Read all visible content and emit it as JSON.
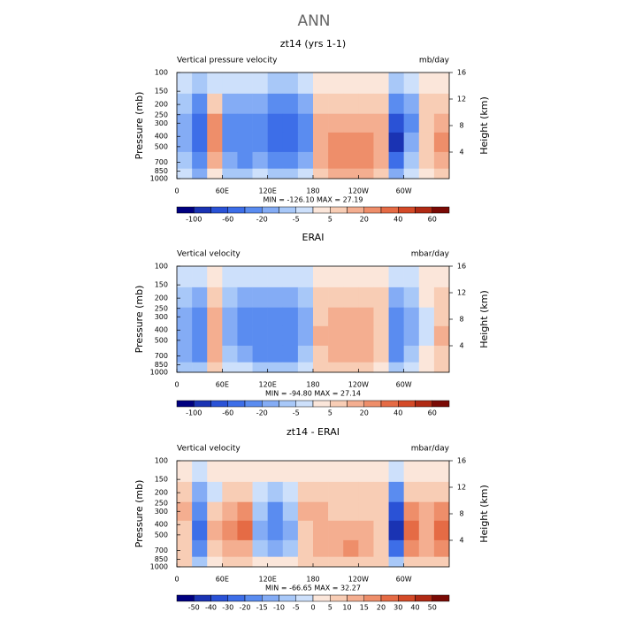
{
  "page_title": "ANN",
  "chart_data": [
    {
      "type": "contour",
      "title": "zt14 (yrs 1-1)",
      "left_label": "Vertical pressure velocity",
      "right_label": "mb/day",
      "ylabel": "Pressure (mb)",
      "y2label": "Height (km)",
      "stats": "MIN = -126.10   MAX =  27.19",
      "xlim": [
        0,
        360
      ],
      "xticks": [
        0,
        {
          "value": 60,
          "label": "60E"
        },
        {
          "value": 120,
          "label": "120E"
        },
        180,
        {
          "value": 240,
          "label": "120W"
        },
        {
          "value": 300,
          "label": "60W"
        }
      ],
      "ylim": [
        100,
        1000
      ],
      "ylog": true,
      "yreverse": true,
      "yticks": [
        100,
        150,
        200,
        250,
        300,
        400,
        500,
        700,
        850,
        1000
      ],
      "y2lim": [
        0,
        16
      ],
      "y2ticks": [
        4,
        8,
        12,
        16
      ],
      "x": [
        10,
        30,
        50,
        70,
        90,
        110,
        130,
        150,
        170,
        190,
        210,
        230,
        250,
        270,
        290,
        310,
        330,
        350
      ],
      "y": [
        125,
        200,
        300,
        450,
        700,
        925
      ],
      "z": [
        [
          -5,
          -10,
          -5,
          -5,
          -5,
          -5,
          -10,
          -10,
          -5,
          0,
          0,
          0,
          0,
          0,
          -10,
          -5,
          0,
          0
        ],
        [
          -10,
          -30,
          5,
          -20,
          -20,
          -20,
          -40,
          -40,
          -20,
          5,
          5,
          5,
          5,
          5,
          -40,
          -20,
          5,
          5
        ],
        [
          -20,
          -50,
          20,
          -30,
          -40,
          -30,
          -50,
          -60,
          -30,
          10,
          10,
          10,
          10,
          10,
          -80,
          -30,
          5,
          10
        ],
        [
          -20,
          -60,
          20,
          -30,
          -40,
          -30,
          -50,
          -60,
          -30,
          10,
          20,
          20,
          20,
          10,
          -100,
          -20,
          5,
          20
        ],
        [
          -10,
          -40,
          10,
          -20,
          -30,
          -20,
          -40,
          -40,
          -20,
          10,
          20,
          20,
          20,
          10,
          -60,
          -10,
          5,
          10
        ],
        [
          -5,
          -20,
          0,
          -10,
          -10,
          -5,
          -10,
          -10,
          -5,
          5,
          10,
          10,
          10,
          5,
          -20,
          -5,
          0,
          5
        ]
      ],
      "colorbar": {
        "levels": [
          -100,
          -80,
          -60,
          -40,
          -20,
          -10,
          -5,
          0,
          5,
          10,
          20,
          30,
          40,
          50,
          60
        ],
        "label_every": 2,
        "colors": [
          "#000080",
          "#1a33b3",
          "#2a52d6",
          "#3d6ee8",
          "#5a8cf0",
          "#84acf5",
          "#a8c8f8",
          "#cde0fb",
          "#fbe6da",
          "#f8cdb5",
          "#f4ae90",
          "#ee8e6a",
          "#e56b45",
          "#d44a28",
          "#b02a14",
          "#7a0a05"
        ]
      }
    },
    {
      "type": "contour",
      "title": "ERAI",
      "left_label": "Vertical velocity",
      "right_label": "mbar/day",
      "ylabel": "Pressure (mb)",
      "y2label": "Height (km)",
      "stats": "MIN = -94.80   MAX =  27.14",
      "xlim": [
        0,
        360
      ],
      "xticks": [
        0,
        {
          "value": 60,
          "label": "60E"
        },
        {
          "value": 120,
          "label": "120E"
        },
        180,
        {
          "value": 240,
          "label": "120W"
        },
        {
          "value": 300,
          "label": "60W"
        }
      ],
      "ylim": [
        100,
        1000
      ],
      "ylog": true,
      "yreverse": true,
      "yticks": [
        100,
        150,
        200,
        250,
        300,
        400,
        500,
        700,
        850,
        1000
      ],
      "y2lim": [
        0,
        16
      ],
      "y2ticks": [
        4,
        8,
        12,
        16
      ],
      "x": [
        10,
        30,
        50,
        70,
        90,
        110,
        130,
        150,
        170,
        190,
        210,
        230,
        250,
        270,
        290,
        310,
        330,
        350
      ],
      "y": [
        125,
        200,
        300,
        450,
        700,
        925
      ],
      "z": [
        [
          -5,
          -5,
          0,
          -5,
          -5,
          -5,
          -5,
          -5,
          -5,
          0,
          0,
          0,
          0,
          0,
          -5,
          -5,
          0,
          0
        ],
        [
          -10,
          -20,
          5,
          -10,
          -20,
          -20,
          -20,
          -20,
          -10,
          5,
          5,
          5,
          5,
          5,
          -20,
          -10,
          0,
          5
        ],
        [
          -20,
          -30,
          10,
          -20,
          -30,
          -30,
          -40,
          -30,
          -20,
          5,
          10,
          10,
          10,
          5,
          -40,
          -20,
          -5,
          5
        ],
        [
          -20,
          -40,
          10,
          -20,
          -30,
          -40,
          -40,
          -40,
          -20,
          10,
          10,
          10,
          10,
          5,
          -40,
          -20,
          -5,
          10
        ],
        [
          -20,
          -30,
          10,
          -10,
          -20,
          -30,
          -30,
          -30,
          -10,
          5,
          10,
          10,
          10,
          5,
          -30,
          -10,
          0,
          5
        ],
        [
          -10,
          -10,
          5,
          -5,
          -5,
          -10,
          -10,
          -10,
          -5,
          5,
          5,
          5,
          5,
          0,
          -10,
          -5,
          0,
          5
        ]
      ],
      "colorbar": {
        "levels": [
          -100,
          -80,
          -60,
          -40,
          -20,
          -10,
          -5,
          0,
          5,
          10,
          20,
          30,
          40,
          50,
          60
        ],
        "label_every": 2,
        "colors": [
          "#000080",
          "#1a33b3",
          "#2a52d6",
          "#3d6ee8",
          "#5a8cf0",
          "#84acf5",
          "#a8c8f8",
          "#cde0fb",
          "#fbe6da",
          "#f8cdb5",
          "#f4ae90",
          "#ee8e6a",
          "#e56b45",
          "#d44a28",
          "#b02a14",
          "#7a0a05"
        ]
      }
    },
    {
      "type": "contour",
      "title": "zt14 - ERAI",
      "left_label": "Vertical velocity",
      "right_label": "mbar/day",
      "ylabel": "Pressure (mb)",
      "y2label": "Height (km)",
      "stats": "MIN = -66.65   MAX =  32.27",
      "xlim": [
        0,
        360
      ],
      "xticks": [
        0,
        {
          "value": 60,
          "label": "60E"
        },
        {
          "value": 120,
          "label": "120E"
        },
        180,
        {
          "value": 240,
          "label": "120W"
        },
        {
          "value": 300,
          "label": "60W"
        }
      ],
      "ylim": [
        100,
        1000
      ],
      "ylog": true,
      "yreverse": true,
      "yticks": [
        100,
        150,
        200,
        250,
        300,
        400,
        500,
        700,
        850,
        1000
      ],
      "y2lim": [
        0,
        16
      ],
      "y2ticks": [
        4,
        8,
        12,
        16
      ],
      "x": [
        10,
        30,
        50,
        70,
        90,
        110,
        130,
        150,
        170,
        190,
        210,
        230,
        250,
        270,
        290,
        310,
        330,
        350
      ],
      "y": [
        125,
        200,
        300,
        450,
        700,
        925
      ],
      "z": [
        [
          0,
          -5,
          0,
          0,
          0,
          0,
          0,
          0,
          0,
          0,
          0,
          0,
          0,
          0,
          -5,
          0,
          0,
          0
        ],
        [
          5,
          -15,
          -5,
          5,
          5,
          -5,
          -10,
          -5,
          5,
          5,
          5,
          5,
          5,
          5,
          -20,
          5,
          5,
          5
        ],
        [
          10,
          -20,
          5,
          10,
          15,
          -10,
          -20,
          -10,
          10,
          10,
          5,
          5,
          5,
          5,
          -40,
          15,
          10,
          15
        ],
        [
          5,
          -30,
          10,
          15,
          20,
          -15,
          -20,
          -15,
          5,
          10,
          10,
          10,
          10,
          5,
          -50,
          20,
          10,
          20
        ],
        [
          5,
          -20,
          5,
          10,
          10,
          -10,
          -15,
          -10,
          5,
          10,
          10,
          15,
          10,
          5,
          -30,
          15,
          10,
          15
        ],
        [
          5,
          -10,
          0,
          5,
          5,
          0,
          0,
          0,
          5,
          5,
          5,
          5,
          5,
          5,
          -10,
          5,
          5,
          5
        ]
      ],
      "colorbar": {
        "levels": [
          -50,
          -40,
          -30,
          -20,
          -15,
          -10,
          -5,
          0,
          5,
          10,
          15,
          20,
          30,
          40,
          50
        ],
        "label_every": 1,
        "colors": [
          "#000080",
          "#1a33b3",
          "#2a52d6",
          "#3d6ee8",
          "#5a8cf0",
          "#84acf5",
          "#a8c8f8",
          "#cde0fb",
          "#fbe6da",
          "#f8cdb5",
          "#f4ae90",
          "#ee8e6a",
          "#e56b45",
          "#d44a28",
          "#b02a14",
          "#7a0a05"
        ]
      }
    }
  ]
}
